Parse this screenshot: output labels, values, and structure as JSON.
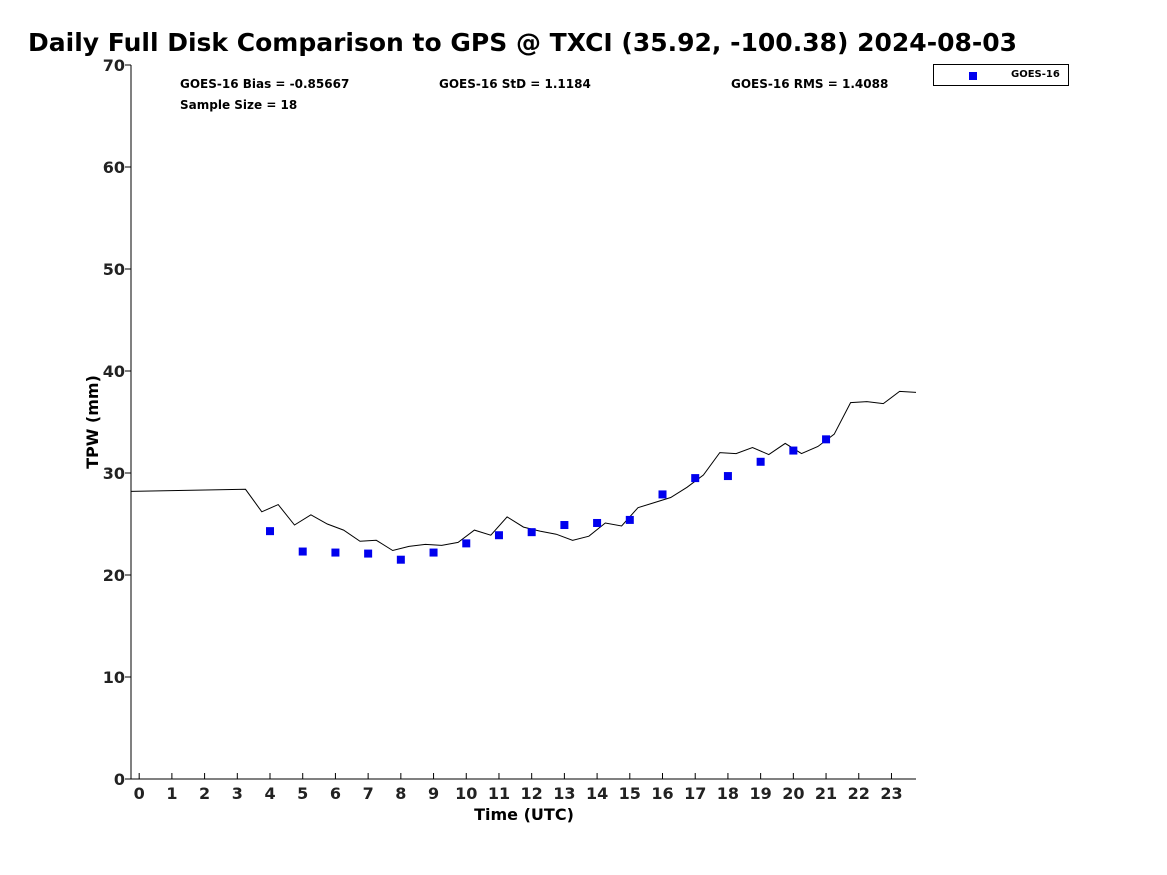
{
  "chart_data": {
    "type": "scatter",
    "title": "Daily Full Disk Comparison to GPS @ TXCI (35.92, -100.38) 2024-08-03",
    "xlabel": "Time (UTC)",
    "ylabel": "TPW (mm)",
    "xlim": [
      -0.25,
      23.75
    ],
    "ylim": [
      0,
      70
    ],
    "xticks": [
      0,
      1,
      2,
      3,
      4,
      5,
      6,
      7,
      8,
      9,
      10,
      11,
      12,
      13,
      14,
      15,
      16,
      17,
      18,
      19,
      20,
      21,
      22,
      23
    ],
    "yticks": [
      0,
      10,
      20,
      30,
      40,
      50,
      60,
      70
    ],
    "grid": false,
    "legend_position": "top-right, outside plot",
    "stats": {
      "bias": "GOES-16 Bias = -0.85667",
      "std": "GOES-16 StD = 1.1184",
      "rms": "GOES-16 RMS = 1.4088",
      "sample": "Sample Size = 18"
    },
    "series": [
      {
        "name": "GOES-16",
        "kind": "markers",
        "color": "#0000ee",
        "x": [
          4,
          5,
          6,
          7,
          8,
          9,
          10,
          11,
          12,
          13,
          14,
          15,
          16,
          17,
          18,
          19,
          20,
          21
        ],
        "y": [
          24.3,
          22.3,
          22.2,
          22.1,
          21.5,
          22.2,
          23.1,
          23.9,
          24.2,
          24.9,
          25.1,
          25.4,
          27.9,
          29.5,
          29.7,
          31.1,
          32.2,
          33.3
        ]
      },
      {
        "kind": "line",
        "color": "#000000",
        "x": [
          -0.25,
          3.25,
          3.75,
          4.25,
          4.75,
          5.25,
          5.75,
          6.25,
          6.75,
          7.25,
          7.75,
          8.25,
          8.75,
          9.25,
          9.75,
          10.25,
          10.75,
          11.25,
          11.75,
          12.25,
          12.75,
          13.25,
          13.75,
          14.25,
          14.75,
          15.25,
          15.75,
          16.25,
          16.75,
          17.25,
          17.75,
          18.25,
          18.75,
          19.25,
          19.75,
          20.25,
          20.75,
          21.25,
          21.75,
          22.25,
          22.75,
          23.25,
          23.75
        ],
        "y": [
          28.2,
          28.4,
          26.2,
          26.9,
          24.9,
          25.9,
          25.0,
          24.4,
          23.3,
          23.4,
          22.4,
          22.8,
          23.0,
          22.9,
          23.2,
          24.4,
          23.9,
          25.7,
          24.7,
          24.3,
          24.0,
          23.4,
          23.8,
          25.1,
          24.8,
          26.6,
          27.1,
          27.6,
          28.6,
          29.8,
          32.0,
          31.9,
          32.5,
          31.8,
          32.9,
          31.9,
          32.6,
          33.8,
          36.9,
          37.0,
          36.8,
          38.0,
          37.9
        ]
      }
    ]
  },
  "legend": {
    "label": "GOES-16",
    "marker_color": "#0000ee"
  }
}
